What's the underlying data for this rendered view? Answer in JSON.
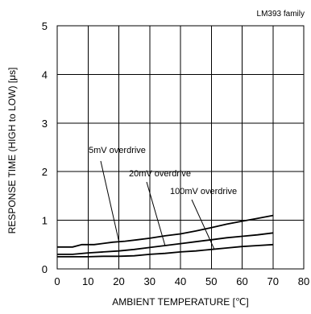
{
  "chart_data": {
    "type": "line",
    "title": "",
    "family_label": "LM393 family",
    "xlabel": "AMBIENT TEMPERATURE [℃]",
    "ylabel": "RESPONSE TIME (HIGH to LOW) [μs]",
    "xlim": [
      0,
      80
    ],
    "ylim": [
      0,
      5
    ],
    "xticks": [
      0,
      10,
      20,
      30,
      40,
      50,
      60,
      70,
      80
    ],
    "yticks": [
      0,
      1,
      2,
      3,
      4,
      5
    ],
    "grid": true,
    "series": [
      {
        "name": "5mV overdrive",
        "x": [
          0,
          5,
          8,
          12,
          18,
          22,
          26,
          30,
          35,
          40,
          45,
          50,
          55,
          60,
          65,
          70
        ],
        "y": [
          0.45,
          0.45,
          0.5,
          0.5,
          0.55,
          0.57,
          0.6,
          0.63,
          0.68,
          0.72,
          0.78,
          0.85,
          0.92,
          0.98,
          1.04,
          1.1
        ],
        "label_anchor": [
          20,
          0.57
        ]
      },
      {
        "name": "20mV overdrive",
        "x": [
          0,
          5,
          10,
          15,
          20,
          25,
          30,
          35,
          40,
          45,
          50,
          55,
          60,
          65,
          70
        ],
        "y": [
          0.3,
          0.3,
          0.33,
          0.35,
          0.37,
          0.4,
          0.44,
          0.48,
          0.52,
          0.56,
          0.6,
          0.64,
          0.67,
          0.7,
          0.74
        ],
        "label_anchor": [
          35,
          0.48
        ]
      },
      {
        "name": "100mV overdrive",
        "x": [
          0,
          5,
          10,
          15,
          20,
          25,
          30,
          35,
          40,
          45,
          50,
          55,
          60,
          65,
          70
        ],
        "y": [
          0.25,
          0.25,
          0.25,
          0.26,
          0.26,
          0.27,
          0.3,
          0.32,
          0.35,
          0.37,
          0.4,
          0.43,
          0.46,
          0.48,
          0.5
        ],
        "label_anchor": [
          51,
          0.4
        ]
      }
    ]
  }
}
